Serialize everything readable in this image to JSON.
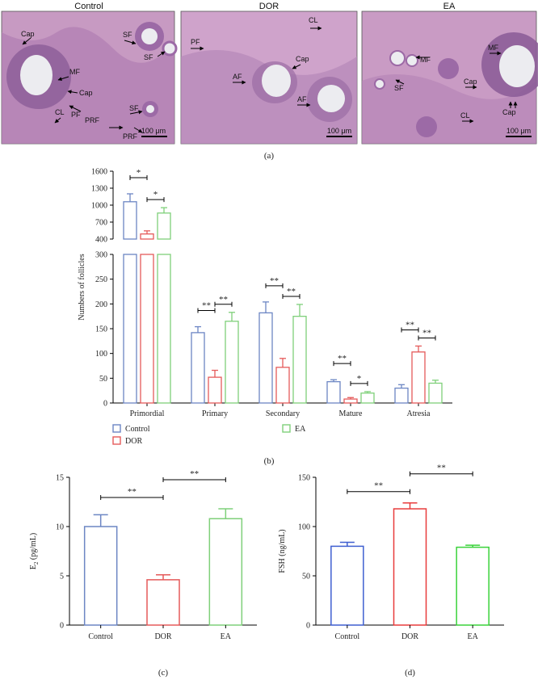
{
  "panel_a": {
    "caption": "(a)",
    "images": [
      {
        "title": "Control",
        "scale_bar": "100 μm",
        "labels": [
          "Cap",
          "MF",
          "Cap",
          "CL",
          "PF",
          "SF",
          "SF",
          "SF",
          "PRF",
          "PRF"
        ]
      },
      {
        "title": "DOR",
        "scale_bar": "100 μm",
        "labels": [
          "CL",
          "PF",
          "Cap",
          "AF",
          "AF"
        ]
      },
      {
        "title": "EA",
        "scale_bar": "100 μm",
        "labels": [
          "MF",
          "MF",
          "SF",
          "Cap",
          "CL",
          "Cap"
        ]
      }
    ],
    "tissue_colors": {
      "bg": "#c79ac2",
      "deep": "#8e5f9a",
      "lumen": "#ececf0"
    }
  },
  "chart_data": [
    {
      "type": "bar",
      "caption": "(b)",
      "ylabel": "Numbers of follicles",
      "categories": [
        "Primordial",
        "Primary",
        "Secondary",
        "Mature",
        "Atresia"
      ],
      "series": [
        {
          "name": "Control",
          "color": "#6c86c4",
          "values": [
            1060,
            142,
            182,
            43,
            30
          ],
          "errors": [
            140,
            12,
            22,
            4,
            7
          ]
        },
        {
          "name": "DOR",
          "color": "#e55a5a",
          "values": [
            490,
            52,
            72,
            8,
            103
          ],
          "errors": [
            55,
            14,
            18,
            3,
            12
          ]
        },
        {
          "name": "EA",
          "color": "#7fd07a",
          "values": [
            860,
            165,
            175,
            20,
            40
          ],
          "errors": [
            95,
            18,
            24,
            3,
            6
          ]
        }
      ],
      "axis_break": {
        "lower": [
          0,
          300
        ],
        "upper": [
          400,
          1600
        ]
      },
      "yticks_lower": [
        0,
        50,
        100,
        150,
        200,
        250,
        300
      ],
      "yticks_upper": [
        400,
        700,
        1000,
        1300,
        1600
      ],
      "significance": [
        {
          "category": "Primordial",
          "pair": [
            "Control",
            "DOR"
          ],
          "label": "*"
        },
        {
          "category": "Primordial",
          "pair": [
            "DOR",
            "EA"
          ],
          "label": "*"
        },
        {
          "category": "Primary",
          "pair": [
            "Control",
            "DOR"
          ],
          "label": "**"
        },
        {
          "category": "Primary",
          "pair": [
            "DOR",
            "EA"
          ],
          "label": "**"
        },
        {
          "category": "Secondary",
          "pair": [
            "Control",
            "DOR"
          ],
          "label": "**"
        },
        {
          "category": "Secondary",
          "pair": [
            "DOR",
            "EA"
          ],
          "label": "**"
        },
        {
          "category": "Mature",
          "pair": [
            "Control",
            "DOR"
          ],
          "label": "**"
        },
        {
          "category": "Mature",
          "pair": [
            "DOR",
            "EA"
          ],
          "label": "*"
        },
        {
          "category": "Atresia",
          "pair": [
            "Control",
            "DOR"
          ],
          "label": "**"
        },
        {
          "category": "Atresia",
          "pair": [
            "DOR",
            "EA"
          ],
          "label": "**"
        }
      ],
      "legend": {
        "placement": "bottom"
      }
    },
    {
      "type": "bar",
      "caption": "(c)",
      "ylabel": "E2 (pg/mL)",
      "ylabel_main": "E",
      "ylabel_sub": "2",
      "ylabel_rest": " (pg/mL)",
      "categories": [
        "Control",
        "DOR",
        "EA"
      ],
      "colors": [
        "#6c86c4",
        "#e55a5a",
        "#7fd07a"
      ],
      "values": [
        10.0,
        4.6,
        10.8
      ],
      "errors": [
        1.2,
        0.5,
        1.0
      ],
      "ylim": [
        0,
        15
      ],
      "yticks": [
        0,
        5,
        10,
        15
      ],
      "significance": [
        {
          "pair": [
            "Control",
            "DOR"
          ],
          "label": "**"
        },
        {
          "pair": [
            "DOR",
            "EA"
          ],
          "label": "**"
        }
      ]
    },
    {
      "type": "bar",
      "caption": "(d)",
      "ylabel": "FSH (ng/mL)",
      "categories": [
        "Control",
        "DOR",
        "EA"
      ],
      "colors": [
        "#3f5fd0",
        "#e83c3c",
        "#3ad23a"
      ],
      "values": [
        80,
        118,
        79
      ],
      "errors": [
        4,
        6,
        2
      ],
      "ylim": [
        0,
        150
      ],
      "yticks": [
        0,
        50,
        100,
        150
      ],
      "significance": [
        {
          "pair": [
            "Control",
            "DOR"
          ],
          "label": "**"
        },
        {
          "pair": [
            "DOR",
            "EA"
          ],
          "label": "**"
        }
      ]
    }
  ]
}
